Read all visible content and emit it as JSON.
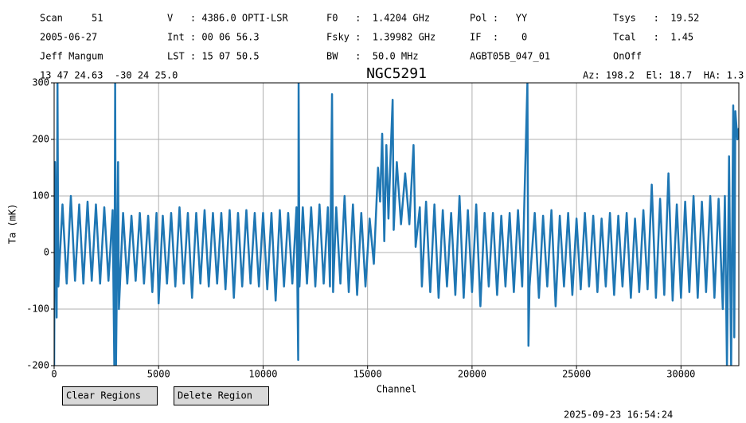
{
  "header": {
    "rows": [
      [
        "Scan     51",
        "V   : 4386.0 OPTI-LSR",
        "F0   :  1.4204 GHz",
        "Pol :   YY",
        "Tsys   :  19.52"
      ],
      [
        "2005-06-27",
        "Int : 00 06 56.3",
        "Fsky :  1.39982 GHz",
        "IF  :    0",
        "Tcal   :  1.45"
      ],
      [
        "Jeff Mangum",
        "LST : 15 07 50.5",
        "BW   :  50.0 MHz",
        "AGBT05B_047_01",
        "OnOff"
      ]
    ],
    "coords": "13 47 24.63  -30 24 25.0",
    "pointing": "Az: 198.2  El: 18.7  HA: 1.3"
  },
  "buttons": [
    "Clear Regions",
    "Delete Region"
  ],
  "timestamp": "2025-09-23 16:54:24",
  "chart_data": {
    "type": "line",
    "title": "NGC5291",
    "x_label": "Channel",
    "y_label": "Ta (mK)",
    "xlim": [
      0,
      32768
    ],
    "ylim": [
      -200,
      300
    ],
    "xticks": [
      0,
      5000,
      10000,
      15000,
      20000,
      25000,
      30000
    ],
    "yticks": [
      -200,
      -100,
      0,
      100,
      200,
      300
    ],
    "grid": true,
    "x": [
      0,
      40,
      120,
      160,
      200,
      400,
      600,
      800,
      1000,
      1200,
      1400,
      1600,
      1800,
      2000,
      2200,
      2400,
      2600,
      2800,
      2880,
      2920,
      2960,
      3000,
      3060,
      3100,
      3300,
      3500,
      3700,
      3900,
      4100,
      4300,
      4500,
      4700,
      4900,
      5000,
      5200,
      5400,
      5600,
      5800,
      6000,
      6200,
      6400,
      6600,
      6800,
      7000,
      7200,
      7400,
      7600,
      7800,
      8000,
      8200,
      8400,
      8600,
      8800,
      9000,
      9200,
      9400,
      9600,
      9800,
      10000,
      10200,
      10400,
      10600,
      10800,
      11000,
      11200,
      11400,
      11600,
      11680,
      11700,
      11740,
      11900,
      12100,
      12300,
      12500,
      12700,
      12900,
      13100,
      13200,
      13300,
      13350,
      13500,
      13700,
      13900,
      14100,
      14300,
      14500,
      14700,
      14900,
      15100,
      15300,
      15500,
      15600,
      15700,
      15800,
      15900,
      16000,
      16100,
      16200,
      16250,
      16400,
      16600,
      16800,
      17000,
      17200,
      17300,
      17500,
      17600,
      17800,
      18000,
      18200,
      18400,
      18600,
      18800,
      19000,
      19200,
      19400,
      19600,
      19800,
      20000,
      20200,
      20400,
      20600,
      20800,
      21000,
      21200,
      21400,
      21600,
      21800,
      22000,
      22200,
      22400,
      22650,
      22700,
      22750,
      23000,
      23200,
      23400,
      23600,
      23800,
      24000,
      24200,
      24400,
      24600,
      24800,
      25000,
      25200,
      25400,
      25600,
      25800,
      26000,
      26200,
      26400,
      26600,
      26800,
      27000,
      27200,
      27400,
      27600,
      27800,
      28000,
      28200,
      28400,
      28600,
      28800,
      29000,
      29200,
      29400,
      29600,
      29800,
      30000,
      30200,
      30400,
      30600,
      30800,
      31000,
      31200,
      31400,
      31600,
      31800,
      32000,
      32100,
      32200,
      32300,
      32400,
      32500,
      32550,
      32600,
      32700,
      32768
    ],
    "series": [
      {
        "name": "Ta",
        "color": "#1f77b4",
        "values": [
          -200,
          160,
          -115,
          300,
          -60,
          85,
          -55,
          100,
          -50,
          85,
          -55,
          90,
          -50,
          85,
          -55,
          80,
          -50,
          75,
          -200,
          300,
          -200,
          -60,
          160,
          -100,
          70,
          -55,
          65,
          -50,
          70,
          -55,
          65,
          -70,
          70,
          -90,
          65,
          -55,
          70,
          -60,
          80,
          -55,
          70,
          -80,
          70,
          -55,
          75,
          -60,
          70,
          -55,
          70,
          -65,
          75,
          -80,
          70,
          -60,
          75,
          -55,
          70,
          -60,
          70,
          -65,
          70,
          -85,
          75,
          -60,
          70,
          -55,
          80,
          -190,
          300,
          -60,
          80,
          -55,
          80,
          -60,
          85,
          -55,
          80,
          -60,
          280,
          -70,
          80,
          -55,
          100,
          -70,
          85,
          -75,
          70,
          -60,
          60,
          -20,
          150,
          90,
          210,
          20,
          190,
          60,
          170,
          270,
          40,
          160,
          50,
          140,
          50,
          190,
          10,
          80,
          -60,
          90,
          -70,
          85,
          -80,
          75,
          -60,
          70,
          -75,
          100,
          -80,
          75,
          -70,
          85,
          -95,
          70,
          -60,
          70,
          -75,
          65,
          -60,
          70,
          -70,
          75,
          -60,
          300,
          -165,
          -60,
          70,
          -80,
          65,
          -60,
          75,
          -95,
          65,
          -60,
          70,
          -75,
          60,
          -65,
          70,
          -60,
          65,
          -70,
          60,
          -60,
          70,
          -75,
          65,
          -60,
          70,
          -80,
          60,
          -70,
          75,
          -65,
          120,
          -80,
          95,
          -75,
          140,
          -85,
          85,
          -80,
          90,
          -70,
          100,
          -80,
          90,
          -70,
          100,
          -80,
          95,
          -100,
          100,
          -200,
          170,
          -200,
          260,
          -150,
          250,
          200,
          220
        ]
      }
    ]
  }
}
